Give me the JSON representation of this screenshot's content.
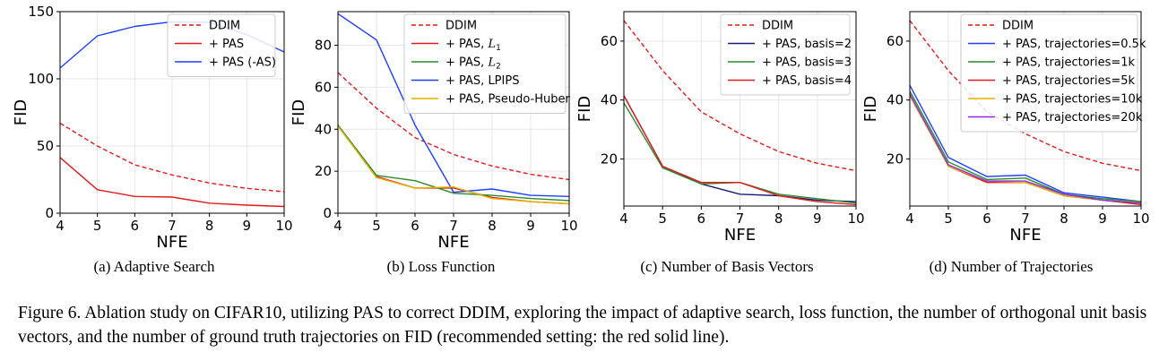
{
  "caption": "Figure 6. Ablation study on CIFAR10, utilizing PAS to correct DDIM, exploring the impact of adaptive search, loss function, the number of orthogonal unit basis vectors, and the number of ground truth trajectories on FID (recommended setting: the red solid line).",
  "chart_data": [
    {
      "type": "line",
      "subcaption": "(a) Adaptive Search",
      "xlabel": "NFE",
      "ylabel": "FID",
      "x": [
        4,
        5,
        6,
        7,
        8,
        9,
        10
      ],
      "xlim": [
        4,
        10
      ],
      "ylim": [
        0,
        150
      ],
      "yticks": [
        0,
        50,
        100,
        150
      ],
      "grid": true,
      "legend_position": "top-right",
      "series": [
        {
          "name": "DDIM",
          "color": "#e41a1c",
          "dash": true,
          "values": [
            67,
            50,
            36,
            28.5,
            22.5,
            18.5,
            16
          ]
        },
        {
          "name": "+ PAS",
          "color": "#e41a1c",
          "dash": false,
          "values": [
            41.5,
            17.5,
            12.5,
            12,
            7.5,
            6,
            5
          ]
        },
        {
          "name": "+ PAS (-AS)",
          "color": "#1f3fff",
          "dash": false,
          "values": [
            108,
            132,
            139,
            142.5,
            142,
            133,
            120
          ]
        }
      ]
    },
    {
      "type": "line",
      "subcaption": "(b) Loss Function",
      "xlabel": "NFE",
      "ylabel": "FID",
      "x": [
        4,
        5,
        6,
        7,
        8,
        9,
        10
      ],
      "xlim": [
        4,
        10
      ],
      "ylim": [
        0,
        96
      ],
      "yticks": [
        0,
        20,
        40,
        60,
        80
      ],
      "grid": true,
      "legend_position": "top-right",
      "series": [
        {
          "name": "DDIM",
          "color": "#e41a1c",
          "dash": true,
          "values": [
            67,
            50,
            36,
            28,
            22.5,
            18.5,
            16
          ]
        },
        {
          "name": "+ PAS, L1",
          "label_main": "+ PAS, ",
          "label_sym": "L",
          "label_sub": "1",
          "color": "#e41a1c",
          "dash": false,
          "values": [
            41.5,
            17.5,
            12,
            12,
            7.5,
            5.5,
            4.5
          ]
        },
        {
          "name": "+ PAS, L2",
          "label_main": "+ PAS, ",
          "label_sym": "L",
          "label_sub": "2",
          "color": "#2a8c2a",
          "dash": false,
          "values": [
            42,
            18,
            15.5,
            9.5,
            8.5,
            7,
            6
          ]
        },
        {
          "name": "+ PAS, LPIPS",
          "color": "#1f3fff",
          "dash": false,
          "values": [
            95,
            82.5,
            42,
            10,
            11.5,
            8.5,
            8
          ]
        },
        {
          "name": "+ PAS, Pseudo-Huber",
          "color": "#e5b000",
          "dash": false,
          "values": [
            41.5,
            17,
            12,
            12.5,
            7,
            5.5,
            4.5
          ]
        }
      ]
    },
    {
      "type": "line",
      "subcaption": "(c) Number of Basis Vectors",
      "xlabel": "NFE",
      "ylabel": "FID",
      "x": [
        4,
        5,
        6,
        7,
        8,
        9,
        10
      ],
      "xlim": [
        4,
        10
      ],
      "ylim": [
        4,
        70
      ],
      "yticks": [
        20,
        40,
        60
      ],
      "grid": true,
      "legend_position": "top-right",
      "series": [
        {
          "name": "DDIM",
          "color": "#e41a1c",
          "dash": true,
          "values": [
            67,
            50,
            36,
            28.5,
            22.5,
            18.5,
            16
          ]
        },
        {
          "name": "+ PAS, basis=2",
          "color": "#1a1a80",
          "dash": false,
          "values": [
            41.5,
            17.5,
            11.5,
            8,
            7.5,
            6,
            5.5
          ]
        },
        {
          "name": "+ PAS, basis=3",
          "color": "#2a8c2a",
          "dash": false,
          "values": [
            39,
            17,
            11.5,
            12,
            8,
            6.5,
            5
          ]
        },
        {
          "name": "+ PAS, basis=4",
          "color": "#e41a1c",
          "dash": false,
          "values": [
            41.5,
            17.5,
            12,
            12,
            7.5,
            5.5,
            4.5
          ]
        }
      ]
    },
    {
      "type": "line",
      "subcaption": "(d) Number of Trajectories",
      "xlabel": "NFE",
      "ylabel": "FID",
      "x": [
        4,
        5,
        6,
        7,
        8,
        9,
        10
      ],
      "xlim": [
        4,
        10
      ],
      "ylim": [
        4,
        70
      ],
      "yticks": [
        20,
        40,
        60
      ],
      "grid": true,
      "legend_position": "top-right",
      "series": [
        {
          "name": "DDIM",
          "color": "#e41a1c",
          "dash": true,
          "values": [
            67,
            50,
            36,
            28.5,
            22.5,
            18.5,
            16
          ]
        },
        {
          "name": "+ PAS, trajectories=0.5k",
          "color": "#1f3fff",
          "dash": false,
          "values": [
            45,
            20.5,
            14,
            14.5,
            8.5,
            7,
            5.5
          ]
        },
        {
          "name": "+ PAS, trajectories=1k",
          "color": "#2a8c2a",
          "dash": false,
          "values": [
            43,
            19,
            13,
            13.5,
            8,
            6.5,
            5.5
          ]
        },
        {
          "name": "+ PAS, trajectories=5k",
          "color": "#e41a1c",
          "dash": false,
          "values": [
            41.5,
            17.5,
            12,
            12,
            7.5,
            6,
            4.5
          ]
        },
        {
          "name": "+ PAS, trajectories=10k",
          "color": "#e5b000",
          "dash": false,
          "values": [
            41.5,
            17.5,
            12.5,
            12,
            7.5,
            6,
            5
          ]
        },
        {
          "name": "+ PAS, trajectories=20k",
          "color": "#8a2be2",
          "dash": false,
          "values": [
            42,
            18,
            12.5,
            12.5,
            8,
            6,
            5
          ]
        }
      ]
    }
  ]
}
